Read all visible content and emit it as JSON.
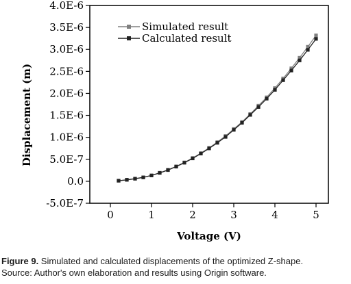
{
  "chart_data": {
    "type": "line",
    "xlabel": "Voltage (V)",
    "ylabel": "Displacement (m)",
    "xlim": [
      -0.5,
      5.3
    ],
    "ylim": [
      -5e-07,
      4e-06
    ],
    "x_ticks": [
      0,
      1,
      2,
      3,
      4,
      5
    ],
    "x_tick_labels": [
      "0",
      "1",
      "2",
      "3",
      "4",
      "5"
    ],
    "y_ticks": [
      -5e-07,
      0,
      5e-07,
      1e-06,
      1.5e-06,
      2e-06,
      2.5e-06,
      3e-06,
      3.5e-06,
      4e-06
    ],
    "y_tick_labels": [
      "-5.0E-7",
      "0.0",
      "5.0E-7",
      "1.0E-6",
      "1.5E-6",
      "2.0E-6",
      "2.5E-6",
      "3.0E-6",
      "3.5E-6",
      "4.0E-6"
    ],
    "legend_position": "top-left",
    "x": [
      0.2,
      0.4,
      0.6,
      0.8,
      1.0,
      1.2,
      1.4,
      1.6,
      1.8,
      2.0,
      2.2,
      2.4,
      2.6,
      2.8,
      3.0,
      3.2,
      3.4,
      3.6,
      3.8,
      4.0,
      4.2,
      4.4,
      4.6,
      4.8,
      5.0
    ],
    "series": [
      {
        "name": "Simulated result",
        "color": "#808080",
        "marker": "square",
        "values": [
          1.3e-08,
          3.5e-08,
          6e-08,
          9e-08,
          1.35e-07,
          1.95e-07,
          2.6e-07,
          3.4e-07,
          4.3e-07,
          5.3e-07,
          6.4e-07,
          7.6e-07,
          8.9e-07,
          1.03e-06,
          1.19e-06,
          1.35e-06,
          1.53e-06,
          1.72e-06,
          1.91e-06,
          2.12e-06,
          2.34e-06,
          2.57e-06,
          2.81e-06,
          3.06e-06,
          3.32e-06
        ]
      },
      {
        "name": "Calculated result",
        "color": "#222222",
        "marker": "square",
        "values": [
          1.3e-08,
          3.3e-08,
          5.8e-08,
          8.8e-08,
          1.32e-07,
          1.9e-07,
          2.55e-07,
          3.33e-07,
          4.22e-07,
          5.2e-07,
          6.3e-07,
          7.48e-07,
          8.75e-07,
          1.01e-06,
          1.17e-06,
          1.33e-06,
          1.51e-06,
          1.69e-06,
          1.88e-06,
          2.08e-06,
          2.3e-06,
          2.52e-06,
          2.75e-06,
          2.99e-06,
          3.24e-06
        ]
      }
    ]
  },
  "caption": {
    "label": "Figure 9.",
    "text": " Simulated and calculated displacements of the optimized Z-shape.",
    "source": "Source: Author's own elaboration and results using Origin software."
  }
}
